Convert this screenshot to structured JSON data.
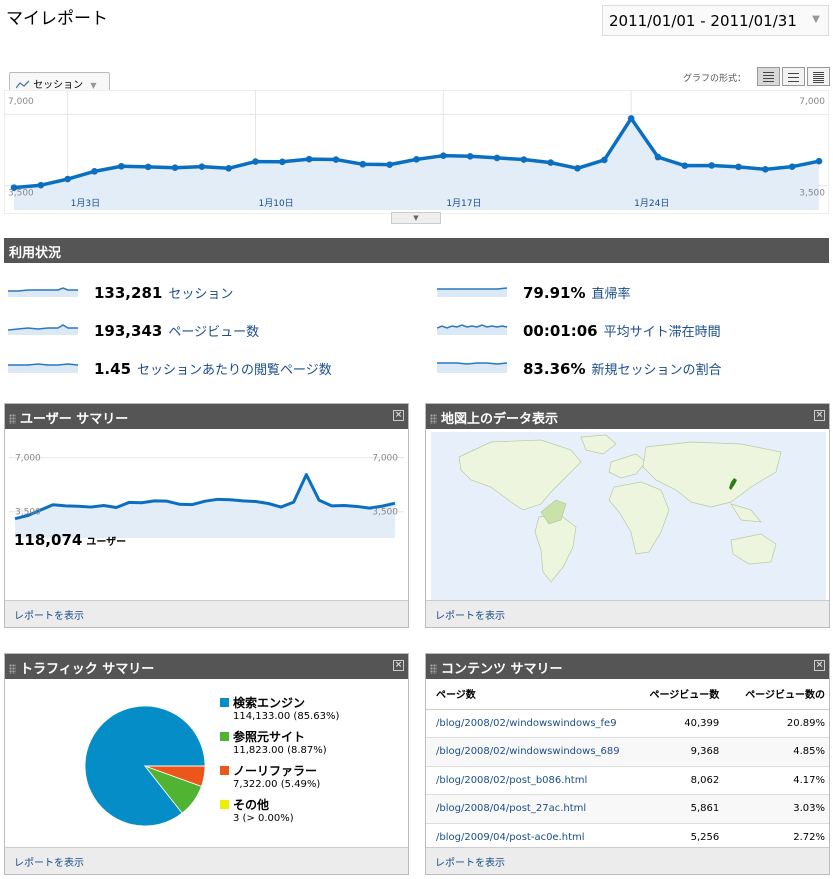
{
  "page_title": "マイレポート",
  "date_range": "2011/01/01 - 2011/01/31",
  "graph_tab": "セッション",
  "graph_type_label": "グラフの形式：",
  "main_chart": {
    "y_max_label": "7,000",
    "y_mid_label": "3,500",
    "x_labels": [
      "1月3日",
      "1月10日",
      "1月17日",
      "1月24日"
    ],
    "chart_data": {
      "type": "area",
      "x": [
        "2011-01-01",
        "2011-01-02",
        "2011-01-03",
        "2011-01-04",
        "2011-01-05",
        "2011-01-06",
        "2011-01-07",
        "2011-01-08",
        "2011-01-09",
        "2011-01-10",
        "2011-01-11",
        "2011-01-12",
        "2011-01-13",
        "2011-01-14",
        "2011-01-15",
        "2011-01-16",
        "2011-01-17",
        "2011-01-18",
        "2011-01-19",
        "2011-01-20",
        "2011-01-21",
        "2011-01-22",
        "2011-01-23",
        "2011-01-24",
        "2011-01-25",
        "2011-01-26",
        "2011-01-27",
        "2011-01-28",
        "2011-01-29",
        "2011-01-30",
        "2011-01-31"
      ],
      "series": [
        {
          "name": "セッション",
          "values": [
            3400,
            3520,
            3820,
            4200,
            4450,
            4420,
            4380,
            4430,
            4350,
            4680,
            4670,
            4800,
            4780,
            4550,
            4530,
            4790,
            4970,
            4940,
            4860,
            4780,
            4630,
            4350,
            4760,
            6800,
            4900,
            4480,
            4490,
            4420,
            4300,
            4430,
            4700
          ]
        }
      ],
      "ylim": [
        2400,
        8000
      ]
    }
  },
  "usage": {
    "title": "利用状況",
    "metrics": [
      {
        "value": "133,281",
        "label": "セッション"
      },
      {
        "value": "193,343",
        "label": "ページビュー数"
      },
      {
        "value": "1.45",
        "label": "セッションあたりの閲覧ページ数"
      },
      {
        "value": "79.91%",
        "label": "直帰率"
      },
      {
        "value": "00:01:06",
        "label": "平均サイト滞在時間"
      },
      {
        "value": "83.36%",
        "label": "新規セッションの割合"
      }
    ]
  },
  "user_summary": {
    "title": "ユーザー サマリー",
    "y_max_label": "7,000",
    "y_mid_label": "3,500",
    "total": "118,074",
    "total_label": "ユーザー",
    "link": "レポートを表示",
    "chart_data": {
      "type": "area",
      "series": [
        {
          "name": "ユーザー",
          "values": [
            3050,
            3250,
            3600,
            3950,
            3880,
            3850,
            3800,
            3900,
            3770,
            4100,
            4080,
            4200,
            4180,
            3980,
            3960,
            4180,
            4300,
            4270,
            4200,
            4160,
            4030,
            3800,
            4120,
            5900,
            4250,
            3880,
            3900,
            3840,
            3730,
            3860,
            4050
          ]
        }
      ],
      "ylim": [
        1800,
        8200
      ]
    }
  },
  "map": {
    "title": "地図上のデータ表示",
    "link": "レポートを表示"
  },
  "traffic": {
    "title": "トラフィック サマリー",
    "link": "レポートを表示",
    "items": [
      {
        "label": "検索エンジン",
        "sub": "114,133.00 (85.63%)",
        "color": "#058dc7"
      },
      {
        "label": "参照元サイト",
        "sub": "11,823.00 (8.87%)",
        "color": "#50b432"
      },
      {
        "label": "ノーリファラー",
        "sub": "7,322.00 (5.49%)",
        "color": "#ed561b"
      },
      {
        "label": "その他",
        "sub": "3 (> 0.00%)",
        "color": "#edef00"
      }
    ],
    "chart_data": {
      "type": "pie",
      "categories": [
        "検索エンジン",
        "参照元サイト",
        "ノーリファラー",
        "その他"
      ],
      "values": [
        85.63,
        8.87,
        5.49,
        0.01
      ]
    }
  },
  "content": {
    "title": "コンテンツ サマリー",
    "link": "レポートを表示",
    "columns": [
      "ページ数",
      "ページビュー数",
      "ページビュー数の"
    ],
    "rows": [
      [
        "/blog/2008/02/windowswindows_fe9",
        "40,399",
        "20.89%"
      ],
      [
        "/blog/2008/02/windowswindows_689",
        "9,368",
        "4.85%"
      ],
      [
        "/blog/2008/02/post_b086.html",
        "8,062",
        "4.17%"
      ],
      [
        "/blog/2008/04/post_27ac.html",
        "5,861",
        "3.03%"
      ],
      [
        "/blog/2009/04/post-ac0e.html",
        "5,256",
        "2.72%"
      ]
    ]
  }
}
